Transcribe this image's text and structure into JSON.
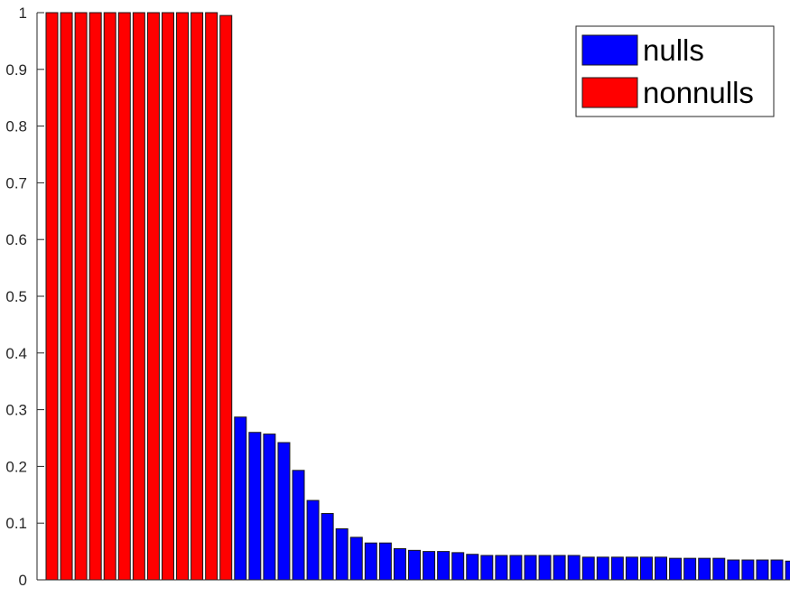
{
  "chart_data": {
    "type": "bar",
    "title": "",
    "xlabel": "",
    "ylabel": "",
    "ylim": [
      0,
      1
    ],
    "yticks": [
      0,
      0.1,
      0.2,
      0.3,
      0.4,
      0.5,
      0.6,
      0.7,
      0.8,
      0.9,
      1
    ],
    "ytick_labels": [
      "0",
      "0.1",
      "0.2",
      "0.3",
      "0.4",
      "0.5",
      "0.6",
      "0.7",
      "0.8",
      "0.9",
      "1"
    ],
    "grid": false,
    "legend_position": "top-right",
    "series": [
      {
        "name": "nulls",
        "color": "#0000ff",
        "values": [
          0.287,
          0.26,
          0.257,
          0.242,
          0.193,
          0.14,
          0.117,
          0.09,
          0.075,
          0.065,
          0.065,
          0.055,
          0.052,
          0.05,
          0.05,
          0.048,
          0.045,
          0.043,
          0.043,
          0.043,
          0.043,
          0.043,
          0.043,
          0.043,
          0.04,
          0.04,
          0.04,
          0.04,
          0.04,
          0.04,
          0.038,
          0.038,
          0.038,
          0.038,
          0.035,
          0.035,
          0.035,
          0.035,
          0.033,
          0.033
        ]
      },
      {
        "name": "nonnulls",
        "color": "#ff0000",
        "values": [
          1,
          1,
          1,
          1,
          1,
          1,
          1,
          1,
          1,
          1,
          1,
          1,
          0.995
        ]
      }
    ],
    "bar_order": "nonnulls first, then nulls"
  }
}
